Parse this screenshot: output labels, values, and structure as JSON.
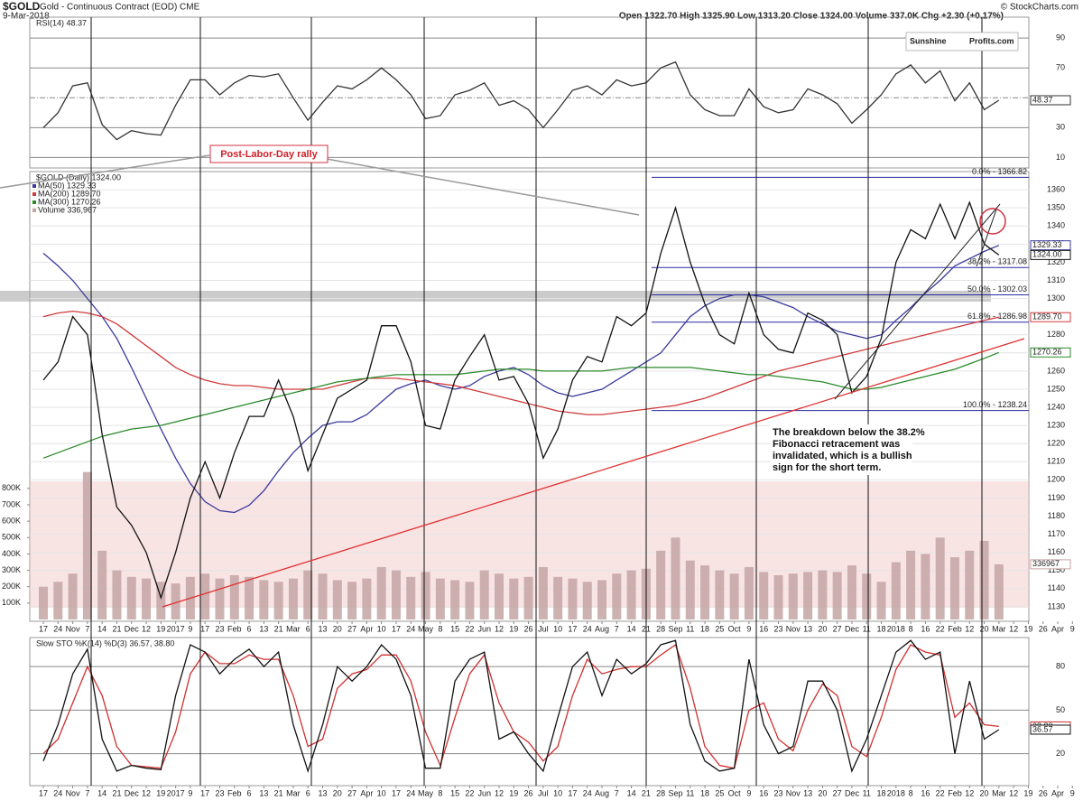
{
  "header": {
    "symbol": "$GOLD",
    "name": "Gold - Continuous Contract (EOD) CME",
    "date": "9-Mar-2018",
    "quote": "Open 1322.70  High 1325.90  Low 1313.20  Close 1324.00  Volume 337.0K  Chg +2.30 (+0.17%)",
    "source": "© StockCharts.com",
    "brand_a": "Sunshine",
    "brand_b": "Profits.com"
  },
  "annotations": {
    "rally": "Post-Labor-Day rally",
    "note": [
      "The breakdown below the 38.2%",
      "Fibonacci retracement was",
      "invalidated, which is a bullish",
      "sign for the short term."
    ]
  },
  "chart_data": [
    {
      "type": "line",
      "title": "RSI(14) 48.37",
      "ylim": [
        3,
        104
      ],
      "yticks": [
        10,
        30,
        70,
        90
      ],
      "reference_line": 50,
      "grid": true,
      "series": [
        {
          "color": "#333333",
          "values": [
            30,
            40,
            58,
            60,
            32,
            22,
            28,
            26,
            25,
            45,
            62,
            62,
            52,
            60,
            65,
            64,
            66,
            50,
            35,
            47,
            58,
            56,
            62,
            70,
            62,
            52,
            36,
            38,
            52,
            55,
            60,
            45,
            48,
            42,
            30,
            42,
            55,
            58,
            52,
            62,
            58,
            60,
            70,
            74,
            52,
            42,
            38,
            38,
            56,
            44,
            40,
            42,
            56,
            52,
            46,
            33,
            42,
            52,
            66,
            72,
            60,
            68,
            48,
            60,
            42,
            48.37,
            null,
            null,
            null,
            null,
            null
          ]
        }
      ]
    },
    {
      "type": "line",
      "title": "$GOLD (Daily) 1324.00",
      "categories": [
        "17",
        "24",
        "Nov",
        "7",
        "14",
        "21",
        "Dec",
        "12",
        "19",
        "2017",
        "9",
        "17",
        "23",
        "Feb",
        "6",
        "13",
        "21",
        "Mar",
        "6",
        "13",
        "20",
        "27",
        "Apr",
        "10",
        "17",
        "24",
        "May",
        "8",
        "15",
        "22",
        "Jun",
        "12",
        "19",
        "26",
        "Jul",
        "10",
        "17",
        "24",
        "Aug",
        "7",
        "14",
        "21",
        "28",
        "Sep",
        "11",
        "18",
        "25",
        "Oct",
        "9",
        "16",
        "23",
        "Nov",
        "13",
        "20",
        "27",
        "Dec",
        "11",
        "18",
        "2018",
        "8",
        "16",
        "22",
        "Feb",
        "12",
        "20",
        "Mar",
        "12",
        "19",
        "26",
        "Apr",
        "9"
      ],
      "ylim": [
        1122,
        1370
      ],
      "yticks": [
        1130,
        1140,
        1150,
        1160,
        1170,
        1180,
        1190,
        1200,
        1210,
        1220,
        1230,
        1240,
        1250,
        1260,
        1270,
        1280,
        1290,
        1300,
        1310,
        1320,
        1330,
        1340,
        1350,
        1360
      ],
      "grid": true,
      "y2lim": [
        -11000,
        2734000
      ],
      "y2ticks": [
        {
          "value": 100000,
          "label": "100K"
        },
        {
          "value": 200000,
          "label": "200K"
        },
        {
          "value": 300000,
          "label": "300K"
        },
        {
          "value": 400000,
          "label": "400K"
        },
        {
          "value": 500000,
          "label": "500K"
        },
        {
          "value": 600000,
          "label": "600K"
        },
        {
          "value": 700000,
          "label": "700K"
        },
        {
          "value": 800000,
          "label": "800K"
        }
      ],
      "fib_levels": [
        {
          "value": 1366.82,
          "label": "0.0% - 1366.82"
        },
        {
          "value": 1317.08,
          "label": "38.2% - 1317.08"
        },
        {
          "value": 1302.03,
          "label": "50.0% - 1302.03"
        },
        {
          "value": 1286.98,
          "label": "61.8% - 1286.98"
        },
        {
          "value": 1238.24,
          "label": "100.0% - 1238.24"
        }
      ],
      "series": [
        {
          "name": "MA(50) 1329.33",
          "color": "#3a3a9c",
          "values": [
            1325,
            1318,
            1310,
            1300,
            1290,
            1278,
            1262,
            1245,
            1228,
            1212,
            1198,
            1188,
            1183,
            1182,
            1186,
            1194,
            1205,
            1215,
            1223,
            1230,
            1232,
            1232,
            1236,
            1243,
            1250,
            1253,
            1255,
            1252,
            1250,
            1252,
            1257,
            1260,
            1262,
            1258,
            1252,
            1248,
            1246,
            1248,
            1250,
            1255,
            1260,
            1265,
            1270,
            1280,
            1290,
            1296,
            1300,
            1302,
            1302,
            1301,
            1298,
            1295,
            1290,
            1286,
            1282,
            1280,
            1278,
            1280,
            1288,
            1295,
            1303,
            1310,
            1318,
            1322,
            1326,
            1329.33,
            null,
            null,
            null,
            null,
            null
          ]
        },
        {
          "name": "MA(200) 1289.70",
          "color": "#d03a3a",
          "values": [
            1290,
            1292,
            1293,
            1292,
            1290,
            1286,
            1280,
            1274,
            1268,
            1262,
            1258,
            1255,
            1253,
            1252,
            1252,
            1251,
            1250,
            1250,
            1250,
            1250,
            1252,
            1254,
            1256,
            1256,
            1256,
            1255,
            1254,
            1253,
            1252,
            1250,
            1248,
            1246,
            1244,
            1242,
            1240,
            1238,
            1237,
            1236,
            1236,
            1237,
            1238,
            1239,
            1240,
            1241,
            1243,
            1245,
            1248,
            1251,
            1254,
            1257,
            1260,
            1262,
            1264,
            1266,
            1268,
            1270,
            1272,
            1274,
            1276,
            1278,
            1280,
            1282,
            1284,
            1286,
            1288,
            1289.7,
            null,
            null,
            null,
            null,
            null
          ],
          "value_labels": [
            null,
            null,
            null,
            null,
            null,
            null,
            null,
            null,
            null,
            null,
            null,
            null,
            null,
            null,
            null,
            null,
            null,
            null,
            null,
            null,
            null,
            null,
            null,
            null,
            null,
            null,
            null,
            null,
            null,
            null,
            null,
            null,
            null,
            null,
            null,
            null,
            null,
            null,
            null,
            null,
            null,
            null,
            null,
            null,
            null,
            null,
            null,
            null,
            null,
            null,
            null,
            null,
            null,
            null,
            null,
            null,
            null,
            null,
            null,
            null,
            null,
            null,
            null,
            null,
            null,
            "1289.70",
            null,
            null,
            null,
            null,
            null
          ]
        },
        {
          "name": "MA(300) 1270.26",
          "color": "#2a8a2a",
          "values": [
            1212,
            1215,
            1218,
            1221,
            1224,
            1226,
            1228,
            1229,
            1230,
            1232,
            1234,
            1236,
            1238,
            1240,
            1242,
            1244,
            1246,
            1248,
            1250,
            1252,
            1254,
            1255,
            1256,
            1257,
            1258,
            1258,
            1258,
            1258,
            1258,
            1259,
            1260,
            1261,
            1261,
            1261,
            1260,
            1260,
            1260,
            1260,
            1260,
            1261,
            1262,
            1262,
            1262,
            1262,
            1262,
            1261,
            1260,
            1259,
            1258,
            1258,
            1257,
            1256,
            1255,
            1254,
            1252,
            1250,
            1250,
            1251,
            1253,
            1255,
            1257,
            1259,
            1261,
            1264,
            1267,
            1270.26,
            null,
            null,
            null,
            null,
            null
          ]
        },
        {
          "name": "Volume 336,967",
          "type": "bar",
          "axis": "y2",
          "color": "#c4a4a4",
          "values": [
            200000,
            230000,
            280000,
            900000,
            420000,
            300000,
            260000,
            250000,
            230000,
            220000,
            260000,
            280000,
            250000,
            270000,
            260000,
            240000,
            230000,
            250000,
            300000,
            280000,
            240000,
            230000,
            250000,
            320000,
            300000,
            260000,
            290000,
            250000,
            240000,
            230000,
            300000,
            280000,
            250000,
            260000,
            320000,
            260000,
            250000,
            230000,
            240000,
            280000,
            300000,
            310000,
            420000,
            500000,
            360000,
            330000,
            300000,
            280000,
            320000,
            290000,
            270000,
            280000,
            290000,
            300000,
            290000,
            330000,
            280000,
            230000,
            350000,
            420000,
            400000,
            500000,
            380000,
            420000,
            480000,
            336967,
            null,
            null,
            null,
            null,
            null
          ]
        },
        {
          "color": "#111111",
          "values": [
            1255,
            1265,
            1290,
            1280,
            1225,
            1185,
            1175,
            1160,
            1135,
            1160,
            1190,
            1210,
            1190,
            1215,
            1235,
            1235,
            1255,
            1235,
            1205,
            1225,
            1245,
            1250,
            1255,
            1285,
            1285,
            1265,
            1230,
            1228,
            1255,
            1268,
            1280,
            1255,
            1257,
            1242,
            1212,
            1228,
            1255,
            1268,
            1265,
            1290,
            1285,
            1292,
            1325,
            1350,
            1320,
            1297,
            1280,
            1275,
            1303,
            1280,
            1272,
            1270,
            1292,
            1288,
            1280,
            1248,
            1257,
            1278,
            1320,
            1338,
            1333,
            1352,
            1333,
            1353,
            1330,
            1324,
            null,
            null,
            null,
            null,
            null
          ],
          "value_labels": [
            null,
            null,
            null,
            null,
            null,
            null,
            null,
            null,
            null,
            null,
            null,
            null,
            null,
            null,
            null,
            null,
            null,
            null,
            null,
            null,
            null,
            null,
            null,
            null,
            null,
            null,
            null,
            null,
            null,
            null,
            null,
            null,
            null,
            null,
            null,
            null,
            null,
            null,
            null,
            null,
            null,
            null,
            null,
            null,
            null,
            null,
            null,
            null,
            null,
            null,
            null,
            null,
            null,
            null,
            null,
            null,
            null,
            null,
            null,
            null,
            null,
            null,
            null,
            null,
            null,
            "1324.00",
            null,
            null,
            null,
            null,
            null
          ]
        }
      ]
    },
    {
      "type": "line",
      "title": "Slow STO %K(14) %D(3) 36.57, 38.80",
      "categories": [
        "17",
        "24",
        "Nov",
        "7",
        "14",
        "21",
        "Dec",
        "12",
        "19",
        "2017",
        "9",
        "17",
        "23",
        "Feb",
        "6",
        "13",
        "21",
        "Mar",
        "6",
        "13",
        "20",
        "27",
        "Apr",
        "10",
        "17",
        "24",
        "May",
        "8",
        "15",
        "22",
        "Jun",
        "12",
        "19",
        "26",
        "Jul",
        "10",
        "17",
        "24",
        "Aug",
        "7",
        "14",
        "21",
        "28",
        "Sep",
        "11",
        "18",
        "25",
        "Oct",
        "9",
        "16",
        "23",
        "Nov",
        "13",
        "20",
        "27",
        "Dec",
        "11",
        "18",
        "2018",
        "8",
        "16",
        "22",
        "Feb",
        "12",
        "20",
        "Mar",
        "12",
        "19",
        "26",
        "Apr",
        "9"
      ],
      "ylim": [
        -2,
        100
      ],
      "yticks": [
        20,
        50,
        80
      ],
      "grid": true,
      "series": [
        {
          "color": "#d03030",
          "values": [
            20,
            30,
            55,
            80,
            60,
            25,
            12,
            11,
            10,
            35,
            75,
            90,
            82,
            82,
            88,
            85,
            85,
            60,
            25,
            30,
            65,
            75,
            78,
            88,
            88,
            70,
            35,
            12,
            45,
            75,
            88,
            55,
            35,
            28,
            15,
            25,
            60,
            85,
            75,
            78,
            80,
            80,
            88,
            95,
            65,
            25,
            12,
            10,
            50,
            55,
            30,
            22,
            50,
            68,
            60,
            25,
            18,
            45,
            78,
            95,
            90,
            88,
            45,
            55,
            40,
            38.8,
            null,
            null,
            null,
            null,
            null
          ],
          "value_labels": [
            null,
            null,
            null,
            null,
            null,
            null,
            null,
            null,
            null,
            null,
            null,
            null,
            null,
            null,
            null,
            null,
            null,
            null,
            null,
            null,
            null,
            null,
            null,
            null,
            null,
            null,
            null,
            null,
            null,
            null,
            null,
            null,
            null,
            null,
            null,
            null,
            null,
            null,
            null,
            null,
            null,
            null,
            null,
            null,
            null,
            null,
            null,
            null,
            null,
            null,
            null,
            null,
            null,
            null,
            null,
            null,
            null,
            null,
            null,
            null,
            null,
            null,
            null,
            null,
            null,
            "38.80",
            null,
            null,
            null,
            null,
            null
          ]
        },
        {
          "color": "#111111",
          "values": [
            15,
            40,
            75,
            92,
            30,
            8,
            12,
            10,
            9,
            60,
            95,
            90,
            75,
            85,
            92,
            80,
            90,
            40,
            8,
            40,
            80,
            70,
            80,
            95,
            85,
            60,
            10,
            10,
            70,
            85,
            90,
            30,
            35,
            20,
            8,
            45,
            80,
            90,
            60,
            85,
            75,
            82,
            95,
            98,
            40,
            15,
            8,
            10,
            85,
            40,
            20,
            25,
            70,
            70,
            50,
            8,
            30,
            60,
            90,
            98,
            85,
            90,
            20,
            70,
            30,
            36.57,
            null,
            null,
            null,
            null,
            null
          ]
        }
      ]
    }
  ]
}
